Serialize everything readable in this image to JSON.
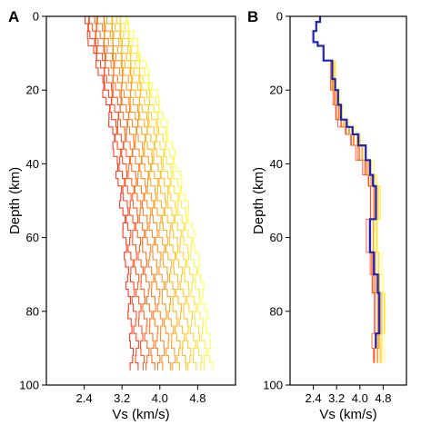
{
  "chart_data": [
    {
      "type": "line",
      "panel_label": "A",
      "xlabel": "Vs (km/s)",
      "ylabel": "Depth (km)",
      "xlim": [
        1.6,
        5.6
      ],
      "ylim": [
        100,
        0
      ],
      "y_inverted": true,
      "x_ticks": [
        "2.4",
        "3.2",
        "4.0",
        "4.8"
      ],
      "x_tick_values": [
        2.4,
        3.2,
        4.0,
        4.8
      ],
      "y_ticks": [
        "0",
        "20",
        "40",
        "60",
        "80",
        "100"
      ],
      "y_tick_values": [
        0,
        20,
        40,
        60,
        80,
        100
      ],
      "grid": false,
      "color_gradient": [
        "#ff1a00",
        "#ff6a00",
        "#ffb000",
        "#ffff33"
      ],
      "ensemble": {
        "model_count": 16,
        "depth": [
          0,
          2,
          4,
          6,
          8,
          10,
          12,
          14,
          16,
          18,
          20,
          22,
          24,
          26,
          28,
          30,
          32,
          34,
          36,
          38,
          40,
          42,
          44,
          46,
          48,
          50,
          52,
          54,
          56,
          58,
          60,
          62,
          64,
          66,
          68,
          70,
          72,
          74,
          76,
          78,
          80,
          82,
          84,
          86,
          88,
          90,
          92,
          94
        ],
        "vs_min": [
          2.42,
          2.45,
          2.48,
          2.52,
          2.58,
          2.63,
          2.68,
          2.72,
          2.76,
          2.8,
          2.83,
          2.87,
          2.9,
          2.93,
          2.96,
          2.99,
          3.01,
          3.03,
          3.05,
          3.07,
          3.09,
          3.11,
          3.13,
          3.15,
          3.17,
          3.19,
          3.21,
          3.23,
          3.24,
          3.25,
          3.26,
          3.27,
          3.28,
          3.29,
          3.3,
          3.31,
          3.32,
          3.33,
          3.34,
          3.35,
          3.36,
          3.37,
          3.38,
          3.39,
          3.4,
          3.4,
          3.41,
          3.41
        ],
        "vs_max": [
          3.32,
          3.38,
          3.44,
          3.5,
          3.56,
          3.62,
          3.68,
          3.74,
          3.8,
          3.86,
          3.92,
          3.97,
          4.02,
          4.07,
          4.12,
          4.17,
          4.21,
          4.25,
          4.29,
          4.33,
          4.37,
          4.41,
          4.45,
          4.49,
          4.53,
          4.57,
          4.61,
          4.64,
          4.67,
          4.7,
          4.73,
          4.76,
          4.79,
          4.82,
          4.85,
          4.87,
          4.89,
          4.91,
          4.93,
          4.95,
          4.97,
          4.99,
          5.01,
          5.03,
          5.05,
          5.06,
          5.07,
          5.08
        ]
      }
    },
    {
      "type": "line",
      "panel_label": "B",
      "xlabel": "Vs (km/s)",
      "ylabel": "Depth (km)",
      "xlim": [
        1.6,
        5.6
      ],
      "ylim": [
        100,
        0
      ],
      "y_inverted": true,
      "x_ticks": [
        "2.4",
        "3.2",
        "4.0",
        "4.8"
      ],
      "x_tick_values": [
        2.4,
        3.2,
        4.0,
        4.8
      ],
      "y_ticks": [
        "0",
        "20",
        "40",
        "60",
        "80",
        "100"
      ],
      "y_tick_values": [
        0,
        20,
        40,
        60,
        80,
        100
      ],
      "grid": false,
      "best_fit_color": "#1f24b8",
      "best_fit": {
        "vs": [
          2.63,
          2.63,
          2.5,
          2.5,
          2.4,
          2.4,
          2.55,
          2.55,
          2.75,
          2.75,
          3.05,
          3.05,
          3.15,
          3.15,
          3.25,
          3.25,
          3.35,
          3.35,
          3.55,
          3.55,
          3.75,
          3.75,
          3.95,
          3.95,
          4.2,
          4.2,
          4.35,
          4.35,
          4.45,
          4.45,
          4.55,
          4.55,
          4.35,
          4.35,
          4.48,
          4.48,
          4.62,
          4.62,
          4.67,
          4.67,
          4.55,
          4.55
        ],
        "depth": [
          0,
          1.5,
          1.5,
          4,
          4,
          7,
          7,
          8,
          8,
          12,
          12,
          17,
          17,
          20,
          20,
          24,
          24,
          28,
          28,
          30,
          30,
          32,
          32,
          35,
          35,
          39,
          39,
          43,
          43,
          46,
          46,
          55,
          55,
          64,
          64,
          70,
          70,
          75,
          75,
          86,
          86,
          90
        ]
      },
      "ensemble": {
        "model_count": 10,
        "depth": [
          12,
          20,
          24,
          28,
          30,
          32,
          35,
          39,
          43,
          46,
          55,
          64,
          70,
          75,
          86,
          90
        ],
        "vs_min": [
          3.0,
          3.08,
          3.18,
          3.28,
          3.48,
          3.68,
          3.88,
          4.12,
          4.26,
          4.36,
          4.26,
          4.36,
          4.4,
          4.5,
          4.45,
          4.45
        ],
        "vs_max": [
          3.15,
          3.3,
          3.42,
          3.62,
          3.82,
          4.02,
          4.25,
          4.45,
          4.58,
          4.72,
          4.62,
          4.72,
          4.8,
          4.9,
          4.8,
          4.8
        ]
      }
    }
  ]
}
